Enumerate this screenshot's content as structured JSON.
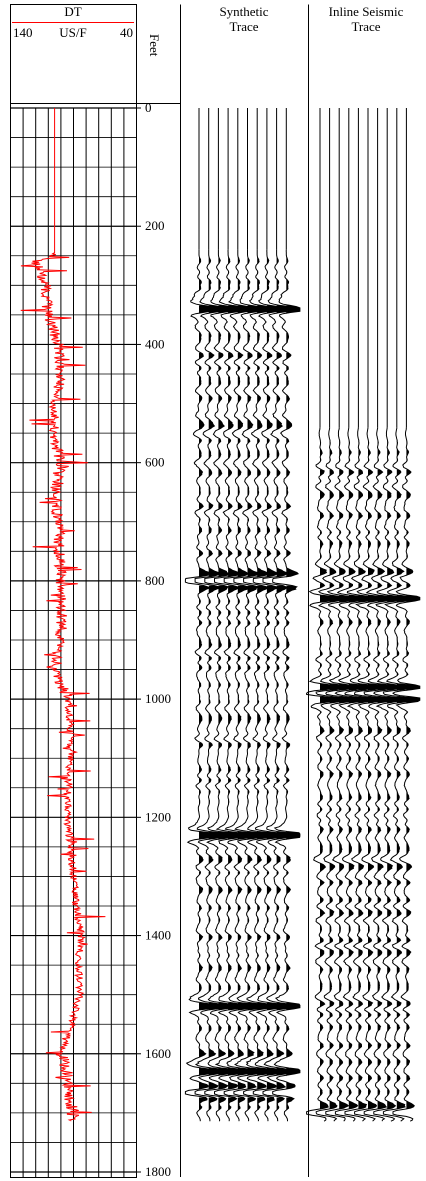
{
  "chart_data": {
    "type": "line",
    "depth_axis": {
      "unit_label": "Feet",
      "range": [
        0,
        1800
      ],
      "ticks": [
        0,
        200,
        400,
        600,
        800,
        1000,
        1200,
        1400,
        1600,
        1800
      ],
      "tick_labels": [
        "0",
        "200",
        "400",
        "600",
        "800",
        "1000",
        "1200",
        "1400",
        "1600",
        "1800"
      ]
    },
    "tracks": [
      {
        "id": "dt_log",
        "curve_name": "DT",
        "unit": "US/F",
        "scale_left": "140",
        "scale_right": "40",
        "x_range": [
          140,
          40
        ],
        "color": "#ff0000",
        "series": [
          {
            "depth": 0,
            "value": 105
          },
          {
            "depth": 250,
            "value": 105
          },
          {
            "depth": 260,
            "value": 120
          },
          {
            "depth": 300,
            "value": 112
          },
          {
            "depth": 350,
            "value": 110
          },
          {
            "depth": 400,
            "value": 102
          },
          {
            "depth": 450,
            "value": 100
          },
          {
            "depth": 500,
            "value": 104
          },
          {
            "depth": 550,
            "value": 106
          },
          {
            "depth": 600,
            "value": 100
          },
          {
            "depth": 650,
            "value": 105
          },
          {
            "depth": 700,
            "value": 102
          },
          {
            "depth": 750,
            "value": 101
          },
          {
            "depth": 800,
            "value": 100
          },
          {
            "depth": 850,
            "value": 99
          },
          {
            "depth": 900,
            "value": 100
          },
          {
            "depth": 950,
            "value": 104
          },
          {
            "depth": 1000,
            "value": 95
          },
          {
            "depth": 1050,
            "value": 92
          },
          {
            "depth": 1100,
            "value": 93
          },
          {
            "depth": 1150,
            "value": 94
          },
          {
            "depth": 1200,
            "value": 95
          },
          {
            "depth": 1250,
            "value": 92
          },
          {
            "depth": 1300,
            "value": 90
          },
          {
            "depth": 1350,
            "value": 88
          },
          {
            "depth": 1400,
            "value": 84
          },
          {
            "depth": 1450,
            "value": 86
          },
          {
            "depth": 1500,
            "value": 85
          },
          {
            "depth": 1550,
            "value": 92
          },
          {
            "depth": 1600,
            "value": 100
          },
          {
            "depth": 1620,
            "value": 96
          },
          {
            "depth": 1650,
            "value": 95
          },
          {
            "depth": 1700,
            "value": 90
          },
          {
            "depth": 1715,
            "value": 90
          }
        ]
      },
      {
        "id": "synthetic",
        "title_lines": [
          "Synthetic",
          "Trace"
        ],
        "trace_count": 10,
        "start_depth": 240,
        "end_depth": 1715,
        "strong_events": [
          340,
          800,
          1230,
          1520,
          1630,
          1665
        ]
      },
      {
        "id": "inline",
        "title_lines": [
          "Inline Seismic",
          "Trace"
        ],
        "trace_count": 10,
        "start_depth": 540,
        "end_depth": 1715,
        "strong_events": [
          830,
          980,
          1000,
          1700
        ]
      }
    ],
    "grid": true
  }
}
